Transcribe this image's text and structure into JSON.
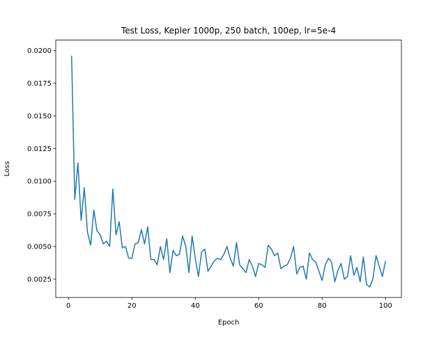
{
  "chart_data": {
    "type": "line",
    "title": "Test Loss, Kepler 1000p, 250 batch, 100ep, lr=5e-4",
    "xlabel": "Epoch",
    "ylabel": "Loss",
    "xlim": [
      -4,
      105
    ],
    "ylim": [
      0.0011,
      0.0208
    ],
    "xticks": [
      0,
      20,
      40,
      60,
      80,
      100
    ],
    "xtick_labels": [
      "0",
      "20",
      "40",
      "60",
      "80",
      "100"
    ],
    "yticks": [
      0.0025,
      0.005,
      0.0075,
      0.01,
      0.0125,
      0.015,
      0.0175,
      0.02
    ],
    "ytick_labels": [
      "0.0025",
      "0.0050",
      "0.0075",
      "0.0100",
      "0.0125",
      "0.0150",
      "0.0175",
      "0.0200"
    ],
    "grid": false,
    "line_color": "#1f77b4",
    "series": [
      {
        "x": [
          1,
          2,
          3,
          4,
          5,
          6,
          7,
          8,
          9,
          10,
          11,
          12,
          13,
          14,
          15,
          16,
          17,
          18,
          19,
          20,
          21,
          22,
          23,
          24,
          25,
          26,
          27,
          28,
          29,
          30,
          31,
          32,
          33,
          34,
          35,
          36,
          37,
          38,
          39,
          40,
          41,
          42,
          43,
          44,
          45,
          46,
          47,
          48,
          49,
          50,
          51,
          52,
          53,
          54,
          55,
          56,
          57,
          58,
          59,
          60,
          61,
          62,
          63,
          64,
          65,
          66,
          67,
          68,
          69,
          70,
          71,
          72,
          73,
          74,
          75,
          76,
          77,
          78,
          79,
          80,
          81,
          82,
          83,
          84,
          85,
          86,
          87,
          88,
          89,
          90,
          91,
          92,
          93,
          94,
          95,
          96,
          97,
          98,
          99,
          100
        ],
        "values": [
          0.0196,
          0.0086,
          0.0114,
          0.007,
          0.0095,
          0.0061,
          0.0051,
          0.0078,
          0.0062,
          0.0059,
          0.0052,
          0.0054,
          0.005,
          0.0094,
          0.0059,
          0.0069,
          0.0049,
          0.005,
          0.0041,
          0.0041,
          0.0052,
          0.0053,
          0.0063,
          0.0052,
          0.0065,
          0.004,
          0.004,
          0.0036,
          0.005,
          0.004,
          0.0056,
          0.003,
          0.0047,
          0.0043,
          0.0044,
          0.0058,
          0.005,
          0.003,
          0.0058,
          0.0041,
          0.0027,
          0.0046,
          0.0048,
          0.0031,
          0.0035,
          0.0039,
          0.0041,
          0.004,
          0.0044,
          0.005,
          0.0041,
          0.0035,
          0.0053,
          0.0036,
          0.0033,
          0.003,
          0.004,
          0.0035,
          0.0027,
          0.0037,
          0.0036,
          0.0034,
          0.0051,
          0.0048,
          0.0043,
          0.0045,
          0.0033,
          0.0035,
          0.0036,
          0.0041,
          0.005,
          0.0029,
          0.0034,
          0.0035,
          0.0025,
          0.0045,
          0.004,
          0.0038,
          0.0031,
          0.0024,
          0.0036,
          0.0041,
          0.0038,
          0.0023,
          0.0032,
          0.0037,
          0.0025,
          0.0027,
          0.0043,
          0.0028,
          0.0034,
          0.0023,
          0.0042,
          0.0021,
          0.0019,
          0.0025,
          0.0043,
          0.0035,
          0.0027,
          0.0039
        ]
      }
    ]
  }
}
